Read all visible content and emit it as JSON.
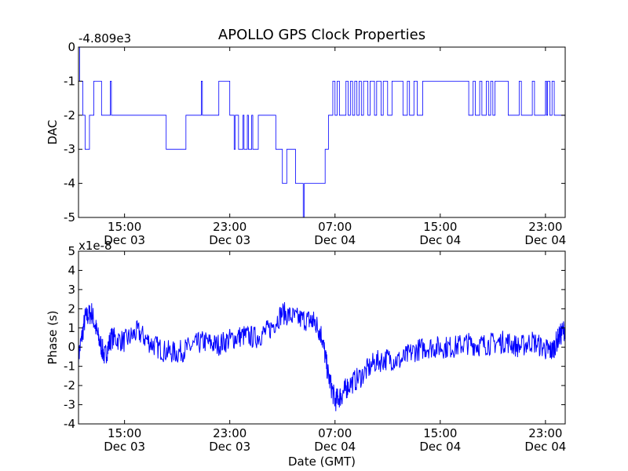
{
  "title": "APOLLO GPS Clock Properties",
  "colors": {
    "line": "#0000ff",
    "axes": "#000000",
    "background": "#ffffff"
  },
  "chart_data": [
    {
      "type": "line",
      "title": "APOLLO GPS Clock Properties",
      "ylabel": "DAC",
      "xlabel": "",
      "y_offset_text": "-4.809e3",
      "xlim": [
        "Dec 03 11:30",
        "Dec 05 00:30"
      ],
      "ylim": [
        -5,
        0
      ],
      "yticks": [
        "0",
        "-1",
        "-2",
        "-3",
        "-4",
        "-5"
      ],
      "xticks": [
        {
          "time": "15:00",
          "date": "Dec 03"
        },
        {
          "time": "23:00",
          "date": "Dec 03"
        },
        {
          "time": "07:00",
          "date": "Dec 04"
        },
        {
          "time": "15:00",
          "date": "Dec 04"
        },
        {
          "time": "23:00",
          "date": "Dec 04"
        }
      ],
      "grid": false,
      "series": [
        {
          "style": "step",
          "x": [
            "Dec 03 11:30",
            "Dec 03 11:35",
            "Dec 03 11:40",
            "Dec 03 11:50",
            "Dec 03 12:00",
            "Dec 03 12:20",
            "Dec 03 12:25",
            "Dec 03 12:40",
            "Dec 03 12:50",
            "Dec 03 13:15",
            "Dec 03 13:50",
            "Dec 03 13:55",
            "Dec 03 14:00",
            "Dec 03 18:00",
            "Dec 03 18:10",
            "Dec 03 19:40",
            "Dec 03 19:45",
            "Dec 03 20:50",
            "Dec 03 20:55",
            "Dec 03 21:00",
            "Dec 03 22:00",
            "Dec 03 22:10",
            "Dec 03 23:00",
            "Dec 03 23:05",
            "Dec 03 23:20",
            "Dec 03 23:25",
            "Dec 03 23:40",
            "Dec 03 23:45",
            "Dec 04 00:00",
            "Dec 04 00:05",
            "Dec 04 00:20",
            "Dec 04 00:25",
            "Dec 04 00:40",
            "Dec 04 00:45",
            "Dec 04 01:10",
            "Dec 04 02:00",
            "Dec 04 02:30",
            "Dec 04 02:40",
            "Dec 04 02:50",
            "Dec 04 03:00",
            "Dec 04 03:10",
            "Dec 04 03:20",
            "Dec 04 04:00",
            "Dec 04 04:30",
            "Dec 04 04:35",
            "Dec 04 04:40",
            "Dec 04 05:00",
            "Dec 04 06:00",
            "Dec 04 06:15",
            "Dec 04 06:30",
            "Dec 04 06:40",
            "Dec 04 06:50",
            "Dec 04 07:00",
            "Dec 04 07:10",
            "Dec 04 07:20",
            "Dec 04 07:30",
            "Dec 04 07:50",
            "Dec 04 08:00",
            "Dec 04 08:10",
            "Dec 04 08:20",
            "Dec 04 08:30",
            "Dec 04 08:40",
            "Dec 04 08:50",
            "Dec 04 09:00",
            "Dec 04 09:10",
            "Dec 04 09:30",
            "Dec 04 09:40",
            "Dec 04 10:00",
            "Dec 04 10:10",
            "Dec 04 10:30",
            "Dec 04 10:40",
            "Dec 04 11:00",
            "Dec 04 11:20",
            "Dec 04 12:00",
            "Dec 04 12:10",
            "Dec 04 12:30",
            "Dec 04 12:40",
            "Dec 04 13:00",
            "Dec 04 13:15",
            "Dec 04 13:40",
            "Dec 04 14:00",
            "Dec 04 15:00",
            "Dec 04 15:10",
            "Dec 04 16:00",
            "Dec 04 16:20",
            "Dec 04 17:00",
            "Dec 04 17:10",
            "Dec 04 17:30",
            "Dec 04 17:40",
            "Dec 04 18:00",
            "Dec 04 18:10",
            "Dec 04 18:30",
            "Dec 04 18:40",
            "Dec 04 18:50",
            "Dec 04 19:00",
            "Dec 04 19:10",
            "Dec 04 20:00",
            "Dec 04 20:10",
            "Dec 04 21:00",
            "Dec 04 21:10",
            "Dec 04 22:00",
            "Dec 04 22:10",
            "Dec 04 23:00",
            "Dec 04 23:05",
            "Dec 04 23:10",
            "Dec 04 23:20",
            "Dec 04 23:30",
            "Dec 04 23:40",
            "Dec 05 00:30"
          ],
          "y": [
            0,
            -1,
            -1,
            -2,
            -3,
            -2,
            -2,
            -1,
            -1,
            -2,
            -2,
            -1,
            -2,
            -2,
            -3,
            -2,
            -2,
            -1,
            -2,
            -2,
            -2,
            -1,
            -2,
            -2,
            -3,
            -2,
            -3,
            -3,
            -2,
            -3,
            -2,
            -3,
            -2,
            -3,
            -2,
            -2,
            -3,
            -3,
            -3,
            -4,
            -4,
            -3,
            -4,
            -4,
            -5,
            -4,
            -4,
            -4,
            -3,
            -2,
            -2,
            -1,
            -2,
            -1,
            -2,
            -2,
            -1,
            -2,
            -1,
            -2,
            -1,
            -2,
            -1,
            -2,
            -1,
            -2,
            -1,
            -2,
            -1,
            -2,
            -1,
            -2,
            -1,
            -1,
            -2,
            -1,
            -2,
            -1,
            -2,
            -1,
            -1,
            -1,
            -1,
            -1,
            -1,
            -1,
            -2,
            -1,
            -2,
            -1,
            -2,
            -1,
            -2,
            -1,
            -2,
            -1,
            -1,
            -2,
            -1,
            -2,
            -1,
            -2,
            -1,
            -2,
            -1,
            -2,
            -1,
            -2,
            -2
          ]
        }
      ]
    },
    {
      "type": "line",
      "ylabel": "Phase (s)",
      "xlabel": "Date (GMT)",
      "y_offset_text": "x1e-8",
      "xlim": [
        "Dec 03 11:30",
        "Dec 05 00:30"
      ],
      "ylim": [
        -4,
        5
      ],
      "yticks": [
        "5",
        "4",
        "3",
        "2",
        "1",
        "0",
        "-1",
        "-2",
        "-3",
        "-4"
      ],
      "xticks": [
        {
          "time": "15:00",
          "date": "Dec 03"
        },
        {
          "time": "23:00",
          "date": "Dec 03"
        },
        {
          "time": "07:00",
          "date": "Dec 04"
        },
        {
          "time": "15:00",
          "date": "Dec 04"
        },
        {
          "time": "23:00",
          "date": "Dec 04"
        }
      ],
      "grid": false,
      "series": [
        {
          "style": "line",
          "x": [
            "Dec 03 11:30",
            "Dec 03 12:00",
            "Dec 03 12:30",
            "Dec 03 13:00",
            "Dec 03 13:30",
            "Dec 03 14:00",
            "Dec 03 15:00",
            "Dec 03 16:00",
            "Dec 03 17:00",
            "Dec 03 18:00",
            "Dec 03 19:00",
            "Dec 03 20:00",
            "Dec 03 21:00",
            "Dec 03 22:00",
            "Dec 03 23:00",
            "Dec 04 00:00",
            "Dec 04 01:00",
            "Dec 04 02:00",
            "Dec 04 03:00",
            "Dec 04 04:00",
            "Dec 04 05:00",
            "Dec 04 05:30",
            "Dec 04 06:00",
            "Dec 04 06:30",
            "Dec 04 07:00",
            "Dec 04 07:30",
            "Dec 04 08:00",
            "Dec 04 09:00",
            "Dec 04 10:00",
            "Dec 04 11:00",
            "Dec 04 12:00",
            "Dec 04 13:00",
            "Dec 04 14:00",
            "Dec 04 15:00",
            "Dec 04 16:00",
            "Dec 04 17:00",
            "Dec 04 18:00",
            "Dec 04 19:00",
            "Dec 04 20:00",
            "Dec 04 21:00",
            "Dec 04 22:00",
            "Dec 04 23:00",
            "Dec 04 23:30",
            "Dec 05 00:00",
            "Dec 05 00:30"
          ],
          "y": [
            -0.5,
            1.5,
            1.8,
            0.5,
            -0.5,
            0.5,
            0.3,
            0.8,
            0.2,
            -0.2,
            -0.3,
            0.0,
            0.3,
            0.1,
            0.4,
            0.6,
            0.5,
            0.9,
            1.8,
            1.5,
            1.4,
            1.3,
            0.6,
            -1.5,
            -2.8,
            -2.5,
            -2.0,
            -1.5,
            -0.8,
            -0.6,
            -0.7,
            -0.2,
            0.0,
            0.0,
            0.0,
            0.2,
            0.1,
            0.2,
            0.3,
            0.0,
            0.3,
            -0.1,
            -0.2,
            0.5,
            1.0
          ]
        }
      ]
    }
  ]
}
